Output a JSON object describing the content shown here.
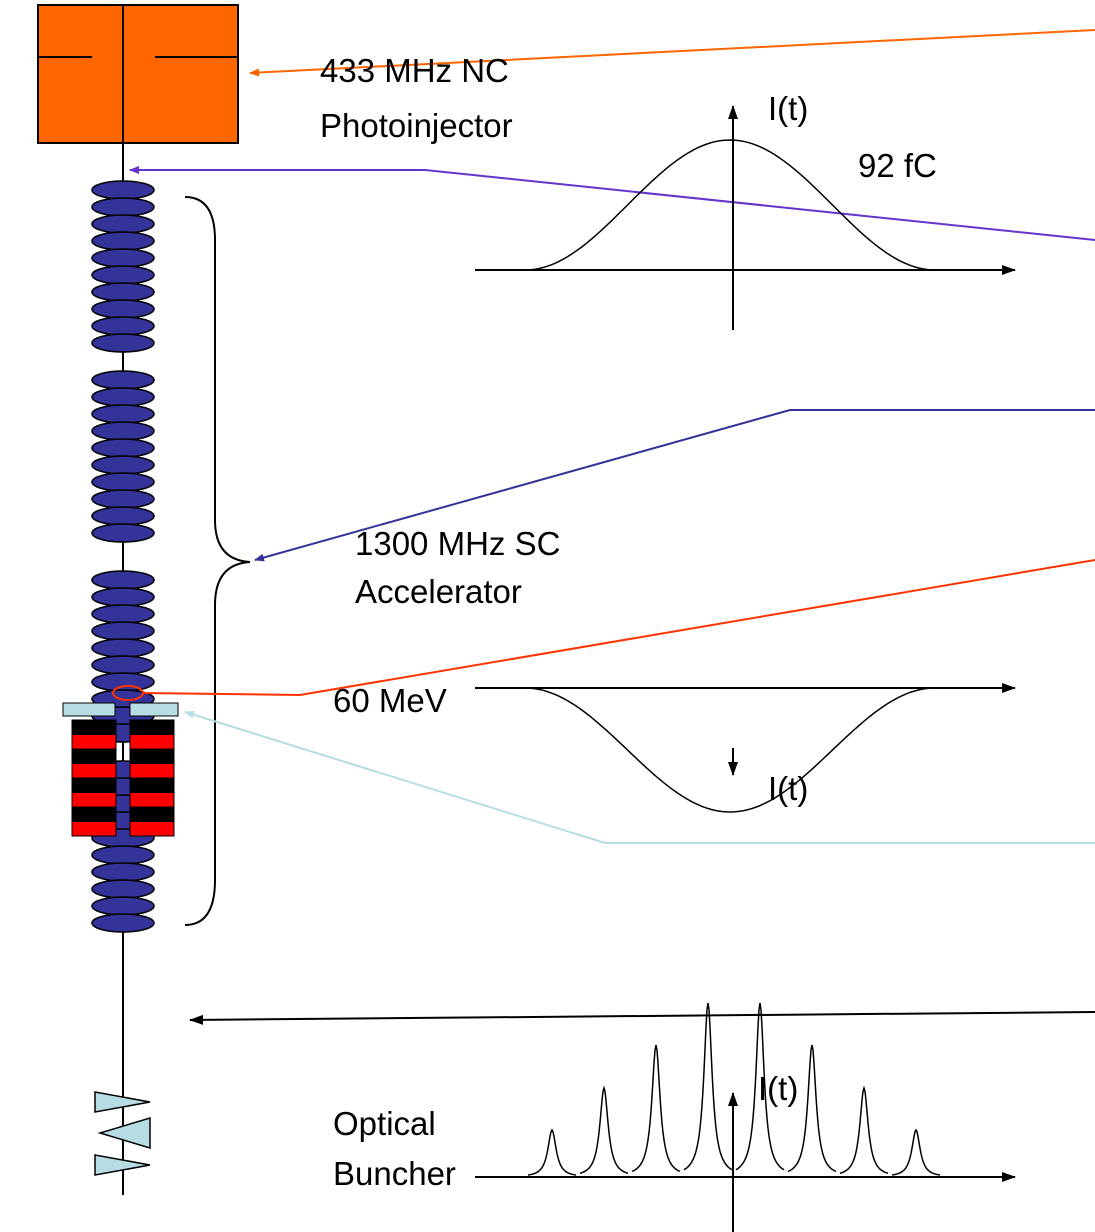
{
  "components": {
    "photoinjector": [
      "433 MHz NC",
      "Photoinjector"
    ],
    "accelerator": [
      "1300 MHz SC",
      "Accelerator"
    ],
    "energy": "60 MeV",
    "buncher": [
      "Optical",
      "Buncher"
    ]
  },
  "plots": [
    {
      "axis_label": "I(t)",
      "annotation": "92 fC"
    },
    {
      "axis_label": "I(t)"
    },
    {
      "axis_label": "I(t)"
    }
  ]
}
